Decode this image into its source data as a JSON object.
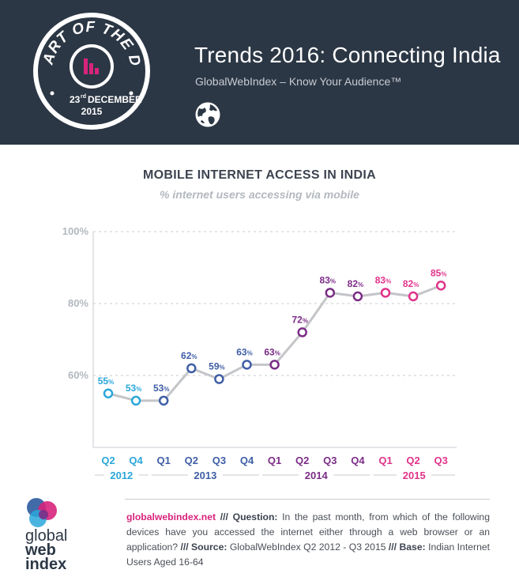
{
  "header": {
    "badge_top": "CHART OF THE DAY",
    "badge_day": "23",
    "badge_suffix": "rd",
    "badge_month": "DECEMBER",
    "badge_year": "2015",
    "title": "Trends 2016: Connecting India",
    "subtitle": "GlobalWebIndex – Know Your Audience™"
  },
  "colors": {
    "header_bg": "#2c3745",
    "line": "#c3c5c8",
    "grid": "#c8cbd0",
    "pink": "#d7247c",
    "magenta": "#e0338a",
    "purple": "#7b2d86",
    "blue": "#3f5ea6",
    "cyan": "#2aa7da"
  },
  "chart_data": {
    "type": "line",
    "title": "MOBILE INTERNET ACCESS IN INDIA",
    "subtitle": "% internet users accessing via mobile",
    "ylim": [
      40,
      100
    ],
    "yticks": [
      {
        "value": 100,
        "label": "100%"
      },
      {
        "value": 80,
        "label": "80%"
      },
      {
        "value": 60,
        "label": "60%"
      }
    ],
    "grid": true,
    "x": [
      "Q2",
      "Q4",
      "Q1",
      "Q2",
      "Q3",
      "Q4",
      "Q1",
      "Q2",
      "Q3",
      "Q4",
      "Q1",
      "Q2",
      "Q3"
    ],
    "values": [
      55,
      53,
      53,
      62,
      59,
      63,
      63,
      72,
      83,
      82,
      83,
      82,
      85
    ],
    "value_labels": [
      "55",
      "53",
      "53",
      "62",
      "59",
      "63",
      "63",
      "72",
      "83",
      "82",
      "83",
      "82",
      "85"
    ],
    "value_suffix": "%",
    "point_colors": [
      "#2aa7da",
      "#2aa7da",
      "#3f5ea6",
      "#3f5ea6",
      "#3f5ea6",
      "#3f5ea6",
      "#7b2d86",
      "#7b2d86",
      "#7b2d86",
      "#7b2d86",
      "#e0338a",
      "#e0338a",
      "#e0338a"
    ],
    "years": [
      {
        "label": "2012",
        "from": 0,
        "to": 1,
        "color": "#2aa7da"
      },
      {
        "label": "2013",
        "from": 2,
        "to": 5,
        "color": "#3f5ea6"
      },
      {
        "label": "2014",
        "from": 6,
        "to": 9,
        "color": "#7b2d86"
      },
      {
        "label": "2015",
        "from": 10,
        "to": 12,
        "color": "#e0338a"
      }
    ]
  },
  "logo": {
    "line1": "global",
    "line2": "web",
    "line3": "index"
  },
  "footer": {
    "site": "globalwebindex.net",
    "sep1": " /// ",
    "question_label": "Question:",
    "question_text": " In the past month, from which of the following devices have you accessed the internet either through a web browser or an application?",
    "sep2": " /// ",
    "source_label": "Source:",
    "source_text": " GlobalWebIndex Q2 2012 - Q3 2015",
    "sep3": " /// ",
    "base_label": "Base:",
    "base_text": " Indian Internet Users Aged 16-64"
  }
}
